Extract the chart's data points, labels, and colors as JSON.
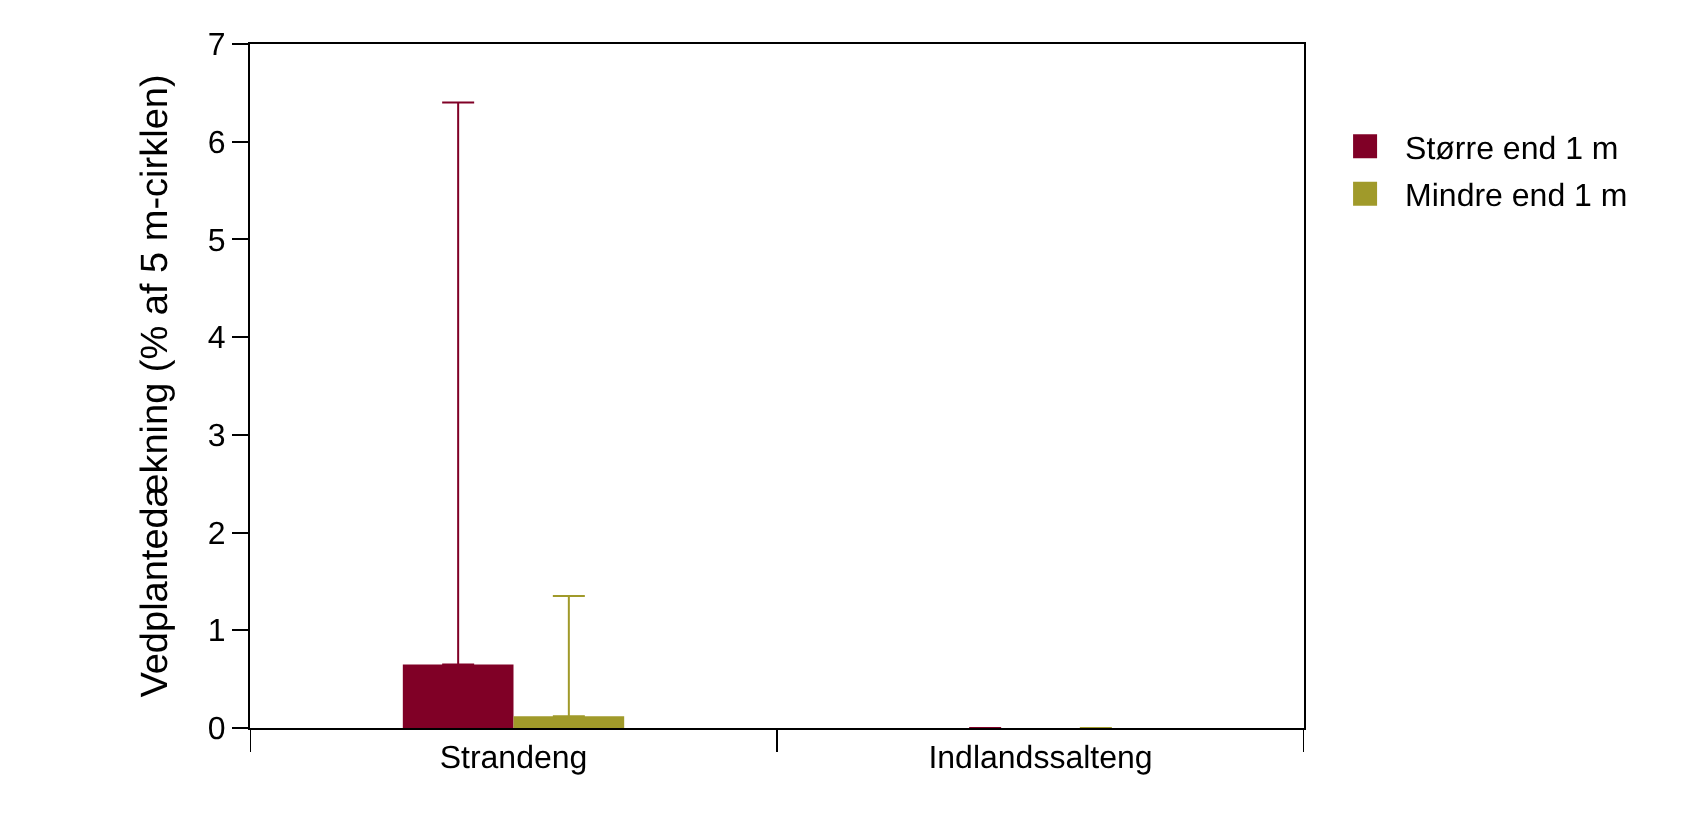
{
  "chart_data": {
    "type": "bar",
    "ylabel": "Vedplantedækning (% af 5 m-cirklen)",
    "categories": [
      "Strandeng",
      "Indlandssalteng"
    ],
    "series": [
      {
        "name": "Større end 1 m",
        "color": "#800026",
        "values": [
          0.65,
          0
        ],
        "errors": [
          [
            0.65,
            6.4
          ],
          null
        ]
      },
      {
        "name": "Mindre end 1 m",
        "color": "#a09a2a",
        "values": [
          0.12,
          0
        ],
        "errors": [
          [
            0.12,
            1.35
          ],
          null
        ]
      }
    ],
    "ylim": [
      0,
      7
    ],
    "yticks": [
      0,
      1,
      2,
      3,
      4,
      5,
      6,
      7
    ],
    "grid": false,
    "legend": "top right"
  }
}
